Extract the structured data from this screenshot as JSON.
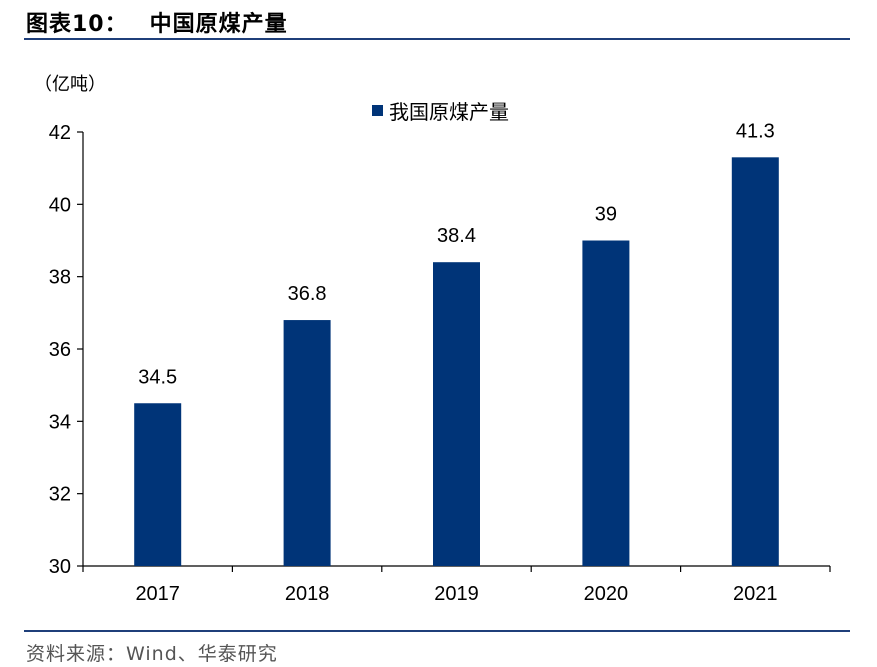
{
  "header": {
    "figure_no": "图表10：",
    "title": "中国原煤产量"
  },
  "footer": {
    "source": "资料来源：Wind、华泰研究"
  },
  "colors": {
    "bar": "#003478",
    "rule": "#1f3f7a",
    "axis": "#000000"
  },
  "chart_data": {
    "type": "bar",
    "title": "中国原煤产量",
    "unit_label": "（亿吨）",
    "categories": [
      "2017",
      "2018",
      "2019",
      "2020",
      "2021"
    ],
    "series": [
      {
        "name": "我国原煤产量",
        "values": [
          34.5,
          36.8,
          38.4,
          39,
          41.3
        ]
      }
    ],
    "data_labels": [
      "34.5",
      "36.8",
      "38.4",
      "39",
      "41.3"
    ],
    "ylim": [
      30,
      42
    ],
    "yticks": [
      30,
      32,
      34,
      36,
      38,
      40,
      42
    ],
    "xlabel": "",
    "ylabel": "",
    "grid": false,
    "legend": "top-center"
  }
}
